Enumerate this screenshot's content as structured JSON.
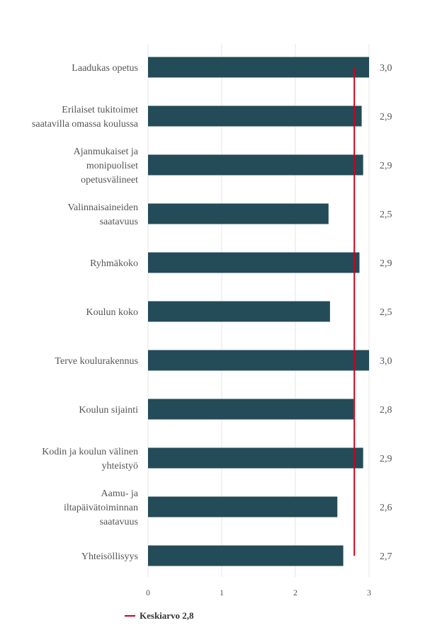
{
  "chart_data": {
    "type": "bar",
    "orientation": "horizontal",
    "categories": [
      "Laadukas opetus",
      "Erilaiset tukitoimet saatavilla omassa koulussa",
      "Ajanmukaiset ja monipuoliset opetusvälineet",
      "Valinnaisaineiden saatavuus",
      "Ryhmäkoko",
      "Koulun koko",
      "Terve koulurakennus",
      "Koulun sijainti",
      "Kodin ja koulun välinen yhteistyö",
      "Aamu- ja iltapäivätoiminnan saatavuus",
      "Yhteisöllisyys"
    ],
    "category_lines": [
      [
        "Laadukas opetus"
      ],
      [
        "Erilaiset tukitoimet",
        "saatavilla omassa koulussa"
      ],
      [
        "Ajanmukaiset ja",
        "monipuoliset",
        "opetusvälineet"
      ],
      [
        "Valinnaisaineiden",
        "saatavuus"
      ],
      [
        "Ryhmäkoko"
      ],
      [
        "Koulun koko"
      ],
      [
        "Terve koulurakennus"
      ],
      [
        "Koulun sijainti"
      ],
      [
        "Kodin ja koulun välinen",
        "yhteistyö"
      ],
      [
        "Aamu- ja",
        "iltapäivätoiminnan",
        "saatavuus"
      ],
      [
        "Yhteisöllisyys"
      ]
    ],
    "values": [
      3.0,
      2.9,
      2.92,
      2.45,
      2.87,
      2.47,
      3.0,
      2.79,
      2.92,
      2.57,
      2.65
    ],
    "value_labels": [
      "3,0",
      "2,9",
      "2,9",
      "2,5",
      "2,9",
      "2,5",
      "3,0",
      "2,8",
      "2,9",
      "2,6",
      "2,7"
    ],
    "xlim": [
      0,
      3
    ],
    "xticks": [
      "0",
      "1",
      "2",
      "3"
    ],
    "grid": "vertical",
    "average": {
      "value": 2.8,
      "label": "Keskiarvo 2,8"
    },
    "legend_position": "bottom-left",
    "colors": {
      "bar": "#234b58",
      "average_line": "#d0021b",
      "grid": "#e6e6e6"
    }
  }
}
